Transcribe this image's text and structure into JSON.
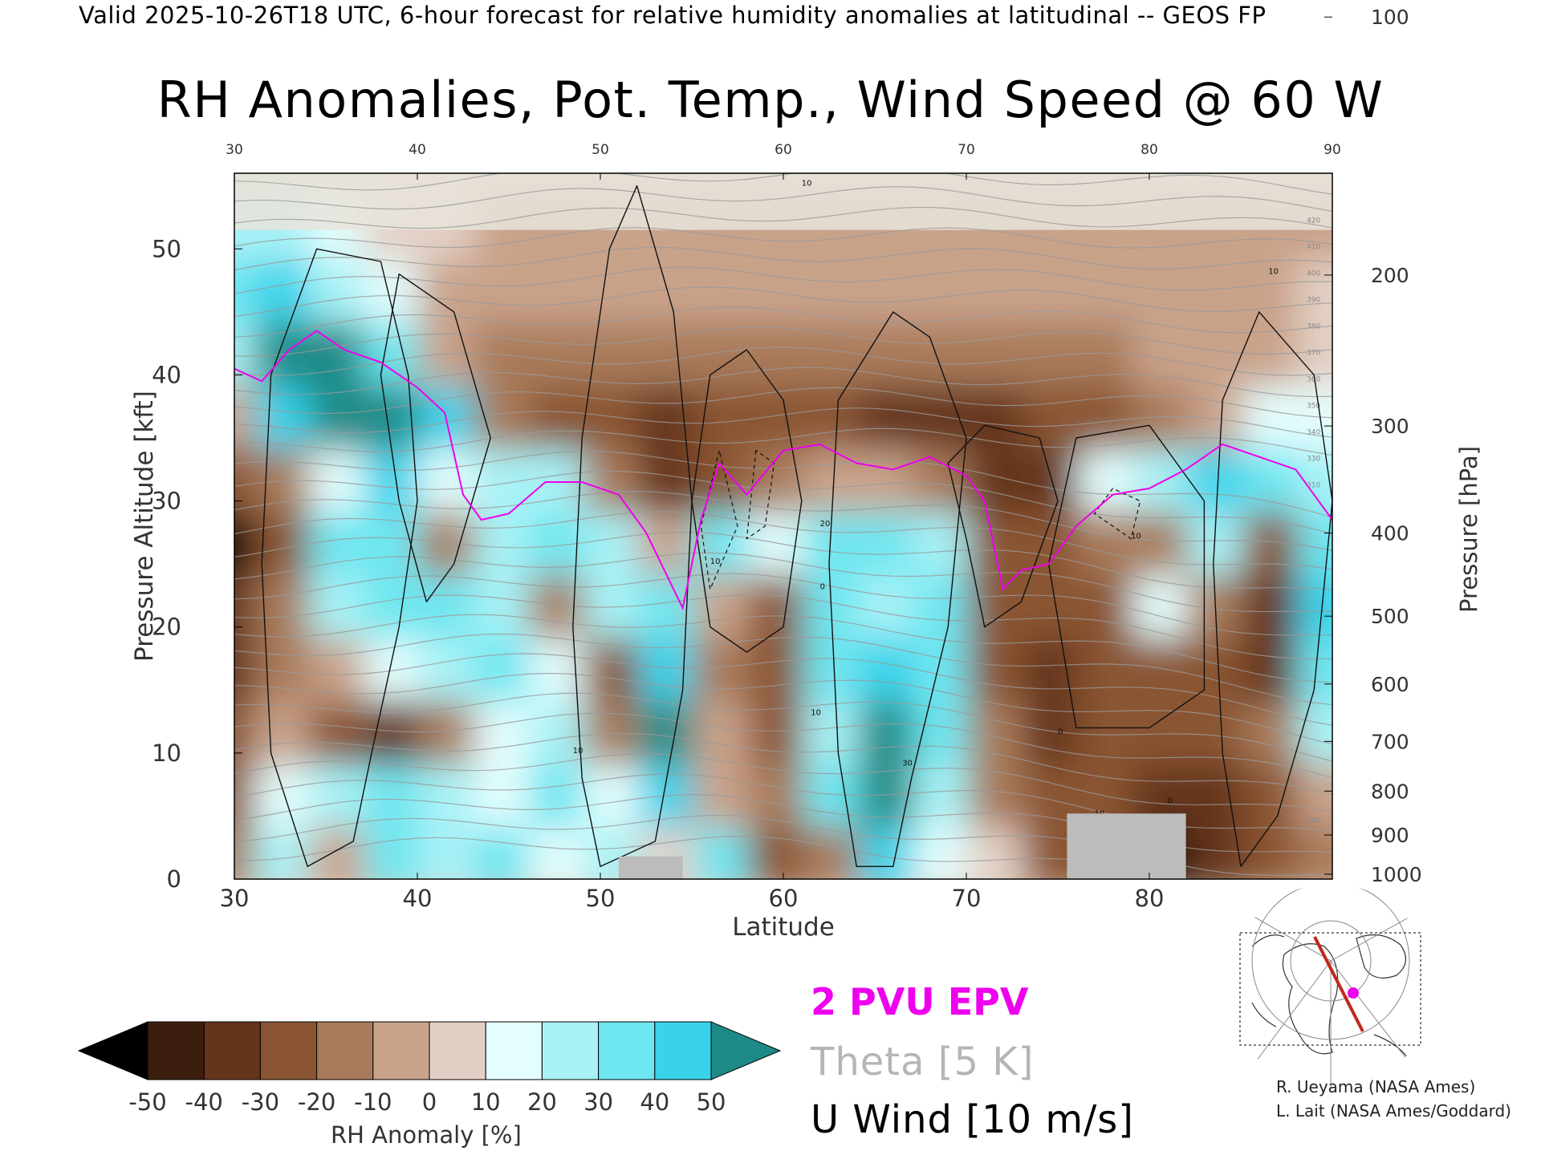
{
  "header": {
    "text": "Valid 2025-10-26T18 UTC, 6-hour forecast for relative humidity anomalies at latitudinal -- GEOS FP"
  },
  "chart_data": {
    "type": "heatmap",
    "title": "RH Anomalies, Pot. Temp., Wind Speed @ 60 W",
    "xlabel": "Latitude",
    "ylabel": "Pressure Altitude [kft]",
    "y2label": "Pressure [hPa]",
    "xlim": [
      30,
      90
    ],
    "ylim": [
      0,
      56
    ],
    "x_ticks": [
      "30",
      "40",
      "50",
      "60",
      "70",
      "80",
      "90"
    ],
    "y_ticks": [
      "0",
      "10",
      "20",
      "30",
      "40",
      "50"
    ],
    "pressure_ticks": [
      {
        "p": 100,
        "label": "100"
      },
      {
        "p": 200,
        "label": "200"
      },
      {
        "p": 300,
        "label": "300"
      },
      {
        "p": 400,
        "label": "400"
      },
      {
        "p": 500,
        "label": "500"
      },
      {
        "p": 600,
        "label": "600"
      },
      {
        "p": 700,
        "label": "700"
      },
      {
        "p": 800,
        "label": "800"
      },
      {
        "p": 900,
        "label": "900"
      },
      {
        "p": 1000,
        "label": "1000"
      }
    ],
    "rh_anomaly_grid": {
      "lat": [
        30,
        33,
        36,
        39,
        42,
        45,
        48,
        51,
        54,
        57,
        60,
        63,
        66,
        69,
        72,
        75,
        78,
        81,
        84,
        87,
        90
      ],
      "alt_kft": [
        2,
        7,
        12,
        17,
        22,
        27,
        32,
        37,
        42,
        47,
        52
      ],
      "values": [
        [
          -20,
          20,
          -10,
          30,
          20,
          30,
          10,
          20,
          5,
          30,
          -30,
          -20,
          40,
          10,
          5,
          -30,
          -30,
          -50,
          -40,
          -30,
          -20
        ],
        [
          -30,
          10,
          20,
          30,
          20,
          10,
          30,
          10,
          40,
          -10,
          -20,
          30,
          50,
          20,
          -20,
          -30,
          -30,
          -40,
          -40,
          -30,
          -10
        ],
        [
          -30,
          -10,
          -30,
          -40,
          -20,
          10,
          20,
          -20,
          50,
          -10,
          -30,
          20,
          50,
          30,
          -20,
          -40,
          -30,
          -30,
          -30,
          -20,
          20
        ],
        [
          -40,
          -20,
          -10,
          10,
          20,
          30,
          10,
          -30,
          40,
          -20,
          -30,
          30,
          40,
          30,
          -30,
          -40,
          -30,
          -30,
          -30,
          -40,
          30
        ],
        [
          -40,
          -20,
          20,
          30,
          30,
          20,
          -20,
          20,
          30,
          -10,
          -30,
          30,
          20,
          30,
          -30,
          -30,
          -30,
          10,
          -20,
          -40,
          40
        ],
        [
          -50,
          -30,
          30,
          30,
          -20,
          20,
          30,
          20,
          -10,
          30,
          10,
          30,
          30,
          20,
          -30,
          -30,
          -20,
          -20,
          20,
          -30,
          30
        ],
        [
          -30,
          -20,
          10,
          40,
          10,
          20,
          20,
          -20,
          -40,
          -30,
          -20,
          -10,
          -10,
          -20,
          -40,
          -40,
          10,
          20,
          40,
          30,
          20
        ],
        [
          -10,
          40,
          50,
          50,
          40,
          -20,
          -30,
          -30,
          -40,
          -30,
          -30,
          -30,
          -40,
          -40,
          -40,
          -30,
          -30,
          -20,
          -10,
          10,
          10
        ],
        [
          20,
          50,
          50,
          30,
          -10,
          -20,
          -20,
          -20,
          -20,
          -20,
          -20,
          -20,
          -20,
          -20,
          -20,
          -20,
          -20,
          -10,
          -10,
          -10,
          0
        ],
        [
          30,
          40,
          20,
          10,
          -10,
          -10,
          -10,
          -10,
          -10,
          -10,
          -10,
          -10,
          -10,
          -10,
          -10,
          -10,
          -10,
          -5,
          -5,
          -5,
          0
        ],
        [
          20,
          20,
          10,
          5,
          0,
          -5,
          -5,
          -5,
          -5,
          -5,
          -5,
          -5,
          -5,
          -5,
          -5,
          -5,
          -5,
          -5,
          -5,
          -5,
          -5
        ]
      ]
    },
    "epv_2pvu_line": {
      "lat": [
        30,
        31.5,
        33,
        34.5,
        36,
        38,
        40,
        41.5,
        42.5,
        43.5,
        45,
        47,
        49,
        51,
        52.5,
        54.5,
        55.5,
        56.5,
        58,
        60,
        62,
        64,
        66,
        68,
        70,
        71,
        72,
        73,
        74.5,
        76,
        78,
        80,
        82,
        84,
        86,
        88,
        90
      ],
      "alt_kft": [
        40.5,
        39.5,
        42,
        43.5,
        42,
        41,
        39,
        37,
        30.5,
        28.5,
        29,
        31.5,
        31.5,
        30.5,
        27.5,
        21.5,
        28.5,
        33,
        30.5,
        34,
        34.5,
        33,
        32.5,
        33.5,
        32,
        30,
        23,
        24.5,
        25,
        28,
        30.5,
        31,
        32.5,
        34.5,
        33.5,
        32.5,
        28.5
      ]
    },
    "theta_levels_k": [
      "280",
      "310",
      "330",
      "340",
      "350",
      "360",
      "370",
      "380",
      "390",
      "400",
      "410",
      "420"
    ],
    "uwind_labels": [
      "10",
      "10",
      "10",
      "20",
      "30",
      "0",
      "0",
      "10",
      "10",
      "0",
      "10",
      "10"
    ],
    "surface_mask": [
      {
        "from_lat": 51,
        "to_lat": 54.5,
        "top_kft": 1.8
      },
      {
        "from_lat": 75.5,
        "to_lat": 82,
        "top_kft": 5.2
      }
    ],
    "colorbar": {
      "label": "RH Anomaly [%]",
      "ticks": [
        "-50",
        "-40",
        "-30",
        "-20",
        "-10",
        "0",
        "10",
        "20",
        "30",
        "40",
        "50"
      ],
      "colors": [
        "#000000",
        "#3c1e0e",
        "#65341a",
        "#8a5433",
        "#a97a5a",
        "#c9a28a",
        "#e3d0c5",
        "#e4fdfd",
        "#a8f2f6",
        "#6ee6f0",
        "#38d3eb",
        "#14b2d6",
        "#0e8fae",
        "#1d8a86"
      ]
    },
    "legend": {
      "epv": "2 PVU EPV",
      "theta": "Theta [5 K]",
      "uwind": "U Wind [10 m/s]"
    },
    "colors": {
      "epv": "#ee00ee",
      "theta": "#9a9a9a",
      "uwind": "#111111",
      "mask": "#bcbcbc",
      "stratosphere": "#e8e4dc",
      "map_track": "#c0281c",
      "map_marker": "#ee00ee"
    }
  },
  "credits": {
    "line1": "R. Ueyama (NASA Ames)",
    "line2": "L. Lait (NASA Ames/Goddard)"
  }
}
